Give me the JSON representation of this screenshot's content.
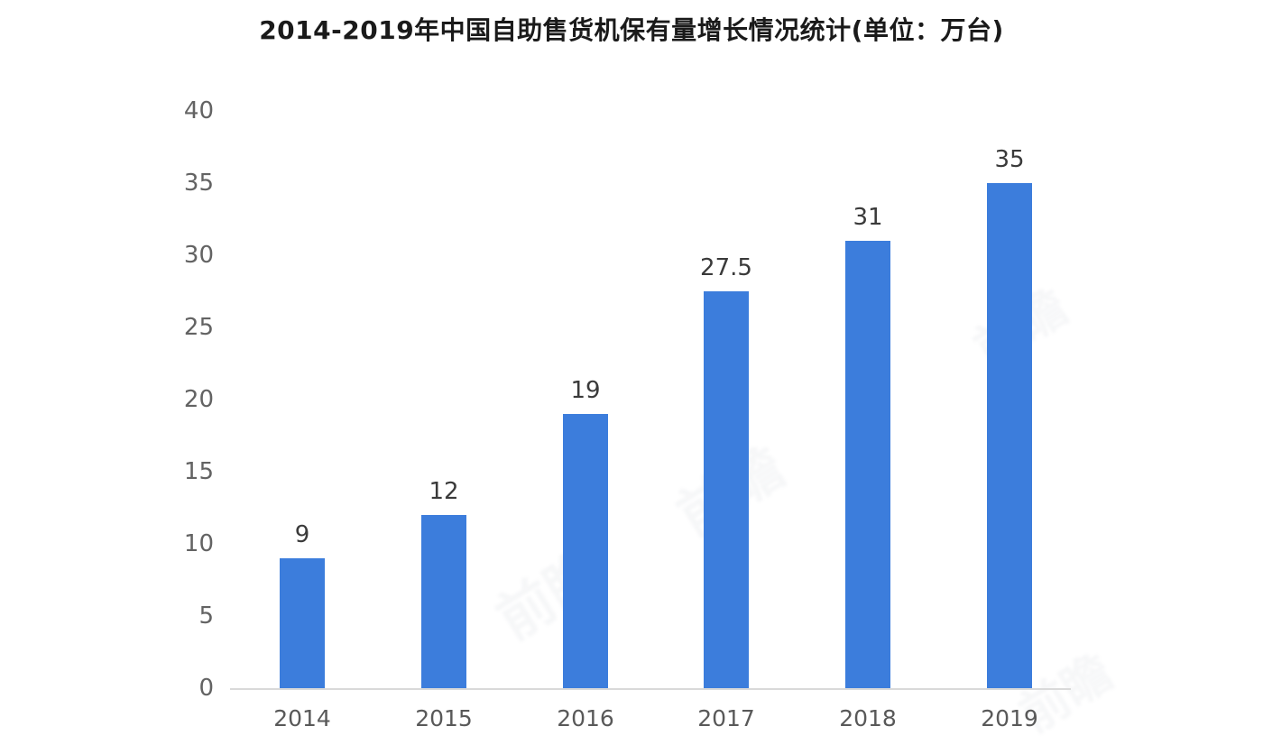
{
  "chart_data": {
    "type": "bar",
    "title": "2014-2019年中国自助售货机保有量增长情况统计(单位：万台)",
    "categories": [
      "2014",
      "2015",
      "2016",
      "2017",
      "2018",
      "2019"
    ],
    "values": [
      9,
      12,
      19,
      27.5,
      31,
      35
    ],
    "value_labels": [
      "9",
      "12",
      "19",
      "27.5",
      "31",
      "35"
    ],
    "unit": "万台",
    "xlabel": "",
    "ylabel": "",
    "ylim": [
      0,
      40
    ],
    "yticks": [
      0,
      5,
      10,
      15,
      20,
      25,
      30,
      35,
      40
    ],
    "grid": false,
    "legend": false,
    "bar_color": "#3c7ddc",
    "axis_line_color": "#d9d9d9",
    "tick_label_color": "#636363",
    "x_label_color": "#595959",
    "value_label_color": "#3a3a3a",
    "title_color": "#1a1a1a",
    "background_color": "#ffffff"
  },
  "watermark": {
    "text": "前瞻"
  }
}
